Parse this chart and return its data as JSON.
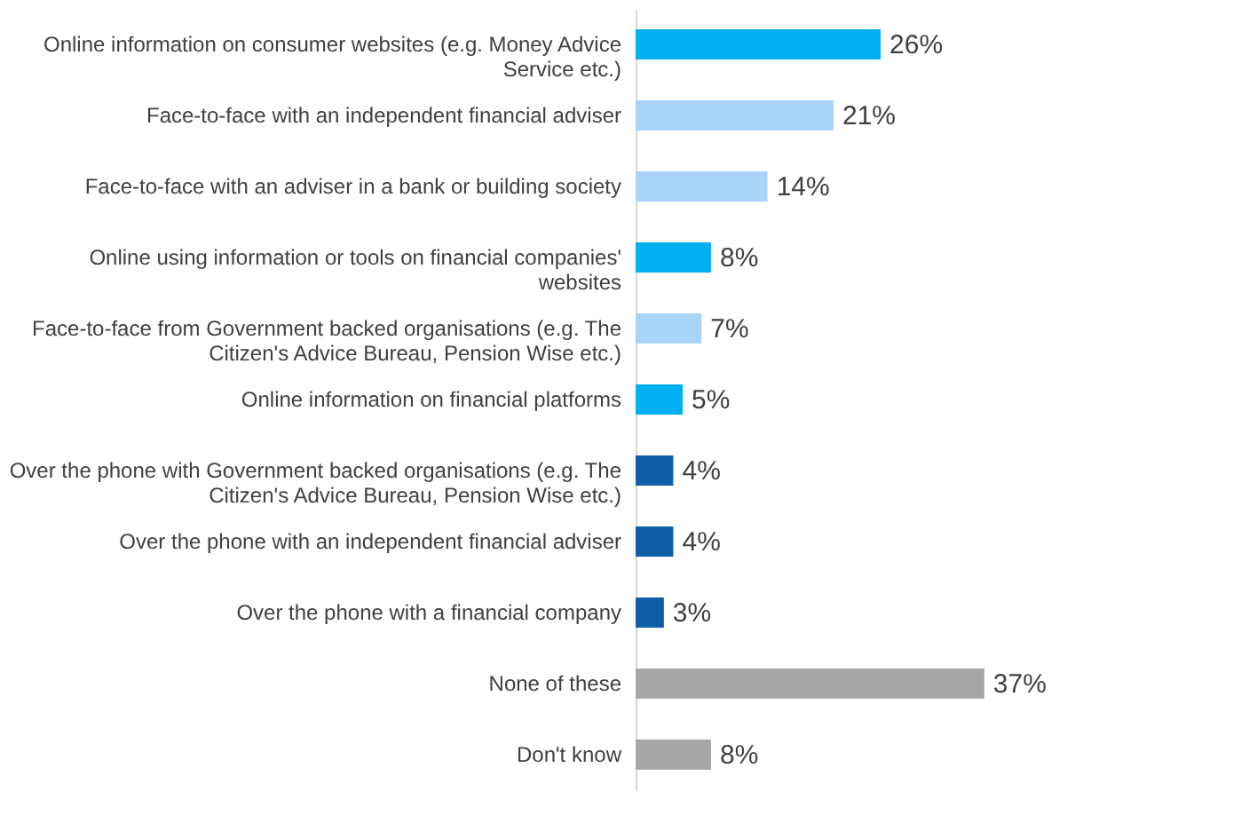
{
  "chart_data": {
    "type": "bar",
    "orientation": "horizontal",
    "categories": [
      "Online information on consumer websites (e.g. Money Advice Service etc.)",
      "Face-to-face with an independent financial adviser",
      "Face-to-face with an adviser in a bank or building society",
      "Online using information or tools on financial companies' websites",
      "Face-to-face from Government backed organisations (e.g. The Citizen's Advice Bureau, Pension Wise etc.)",
      "Online information on financial platforms",
      "Over the phone with Government backed organisations (e.g. The Citizen's Advice Bureau, Pension Wise etc.)",
      "Over the phone with an independent financial adviser",
      "Over the phone with a financial company",
      "None of these",
      "Don't know"
    ],
    "values": [
      26,
      21,
      14,
      8,
      7,
      5,
      4,
      4,
      3,
      37,
      8
    ],
    "value_labels": [
      "26%",
      "21%",
      "14%",
      "8%",
      "7%",
      "5%",
      "4%",
      "4%",
      "3%",
      "37%",
      "8%"
    ],
    "colors": [
      "#00b0f0",
      "#a9d4f7",
      "#a9d4f7",
      "#00b0f0",
      "#a9d4f7",
      "#00b0f0",
      "#0e5fa8",
      "#0e5fa8",
      "#0e5fa8",
      "#a6a6a6",
      "#a6a6a6"
    ],
    "grid": false
  }
}
